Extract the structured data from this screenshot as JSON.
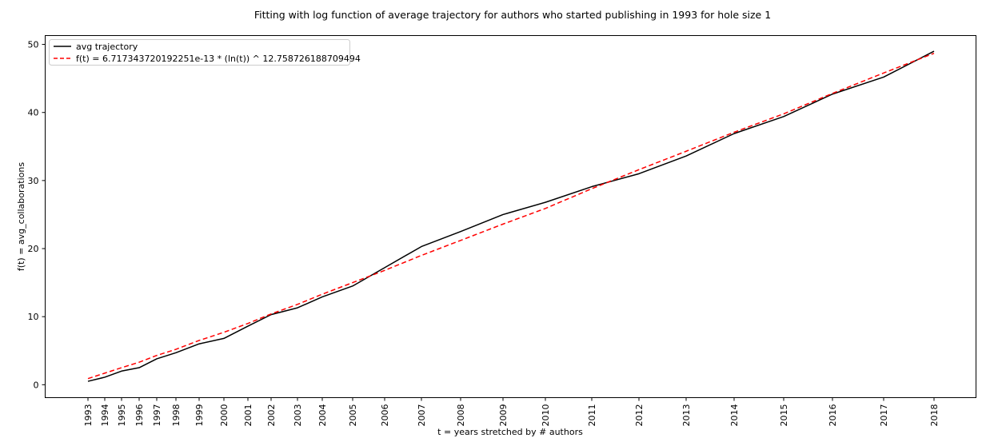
{
  "chart_data": {
    "type": "line",
    "title": "Fitting with log function of average trajectory for authors who started publishing in 1993 for hole size 1",
    "xlabel": "t = years stretched by # authors",
    "ylabel": "f(t) = avg_collaborations",
    "ylim": [
      -1.9,
      51.3
    ],
    "yticks": [
      0,
      10,
      20,
      30,
      40,
      50
    ],
    "grid": false,
    "legend_position": "top-left",
    "x": [
      "1993",
      "1994",
      "1995",
      "1996",
      "1997",
      "1998",
      "1999",
      "2000",
      "2001",
      "2002",
      "2003",
      "2004",
      "2005",
      "2006",
      "2007",
      "2008",
      "2009",
      "2010",
      "2011",
      "2012",
      "2013",
      "2014",
      "2015",
      "2016",
      "2017",
      "2018"
    ],
    "series": [
      {
        "name": "avg trajectory",
        "color": "#000000",
        "style": "solid",
        "values": [
          0.5,
          1.1,
          2.0,
          2.5,
          3.8,
          4.7,
          6.0,
          6.8,
          8.6,
          10.3,
          11.3,
          12.9,
          14.5,
          17.2,
          20.3,
          22.5,
          25.0,
          26.8,
          29.1,
          31.0,
          33.6,
          36.9,
          39.4,
          42.7,
          45.2,
          49.0
        ]
      },
      {
        "name": "f(t) = 6.717343720192251e-13 * (ln(t)) ^ 12.758726188709494",
        "color": "#ff0000",
        "style": "dashed",
        "values": [
          0.9,
          1.7,
          2.5,
          3.3,
          4.3,
          5.2,
          6.5,
          7.7,
          9.0,
          10.4,
          11.8,
          13.3,
          15.0,
          16.8,
          19.0,
          21.2,
          23.6,
          25.9,
          28.8,
          31.6,
          34.3,
          37.1,
          39.8,
          42.8,
          45.8,
          48.7
        ]
      }
    ]
  }
}
